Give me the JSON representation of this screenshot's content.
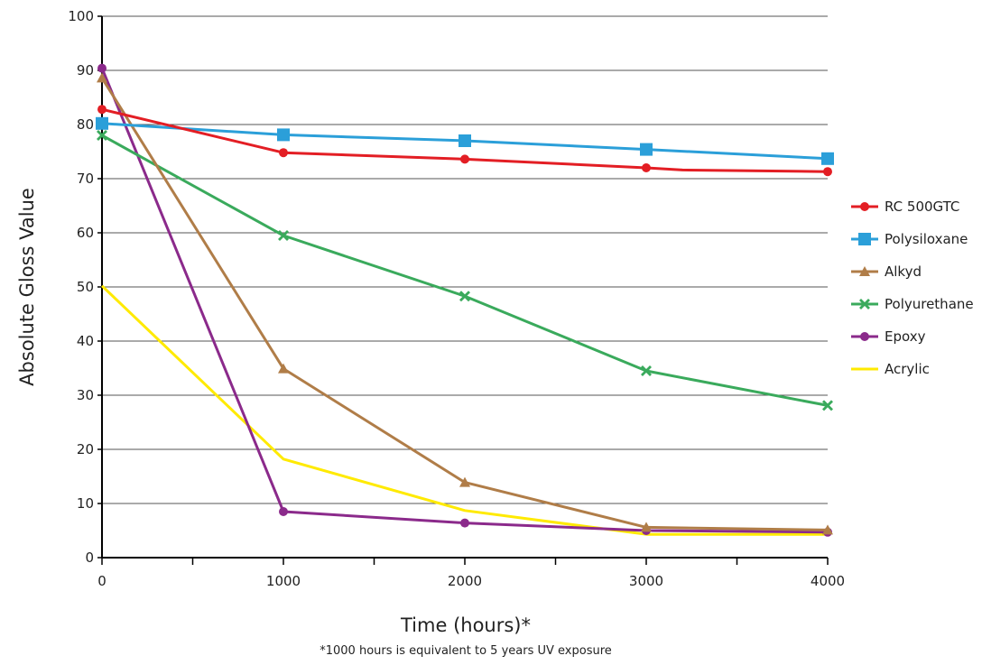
{
  "chart_data": {
    "type": "line",
    "xlabel": "Time (hours)*",
    "ylabel": "Absolute Gloss Value",
    "footnote": "*1000 hours is equivalent to 5 years UV exposure",
    "xlim": [
      0,
      4000
    ],
    "ylim": [
      0,
      100
    ],
    "x_ticks": [
      0,
      1000,
      2000,
      3000,
      4000
    ],
    "y_ticks": [
      0,
      10,
      20,
      30,
      40,
      50,
      60,
      70,
      80,
      90,
      100
    ],
    "grid": "horizontal",
    "legend_position": "right",
    "series": [
      {
        "name": "RC 500GTC",
        "color": "#e31e24",
        "marker": "circle",
        "x": [
          0,
          1000,
          2000,
          3000,
          4000
        ],
        "y": [
          82.8,
          74.8,
          73.6,
          72.0,
          71.3
        ],
        "line_x": [
          0,
          1000,
          2000,
          3000,
          3200,
          4000
        ],
        "line_y": [
          82.8,
          74.8,
          73.6,
          72.0,
          71.6,
          71.3
        ]
      },
      {
        "name": "Polysiloxane",
        "color": "#2b9fd9",
        "marker": "square",
        "x": [
          0,
          1000,
          2000,
          3000,
          4000
        ],
        "y": [
          80.2,
          78.1,
          77.0,
          75.4,
          73.7
        ]
      },
      {
        "name": "Alkyd",
        "color": "#b07d48",
        "marker": "triangle",
        "x": [
          0,
          1000,
          2000,
          3000,
          4000
        ],
        "y": [
          88.6,
          34.9,
          13.9,
          5.6,
          5.1
        ]
      },
      {
        "name": "Polyurethane",
        "color": "#3aaa5c",
        "marker": "x",
        "x": [
          0,
          1000,
          2000,
          3000,
          4000
        ],
        "y": [
          78.0,
          59.5,
          48.3,
          34.5,
          28.1
        ]
      },
      {
        "name": "Epoxy",
        "color": "#8b2a8b",
        "marker": "circle",
        "x": [
          0,
          1000,
          2000,
          3000,
          4000
        ],
        "y": [
          90.4,
          8.5,
          6.4,
          5.0,
          4.7
        ]
      },
      {
        "name": "Acrylic",
        "color": "#ffea00",
        "marker": "none",
        "x": [
          0,
          1000,
          2000,
          3000,
          4000
        ],
        "y": [
          50.2,
          18.2,
          8.7,
          4.3,
          4.3
        ]
      }
    ]
  }
}
